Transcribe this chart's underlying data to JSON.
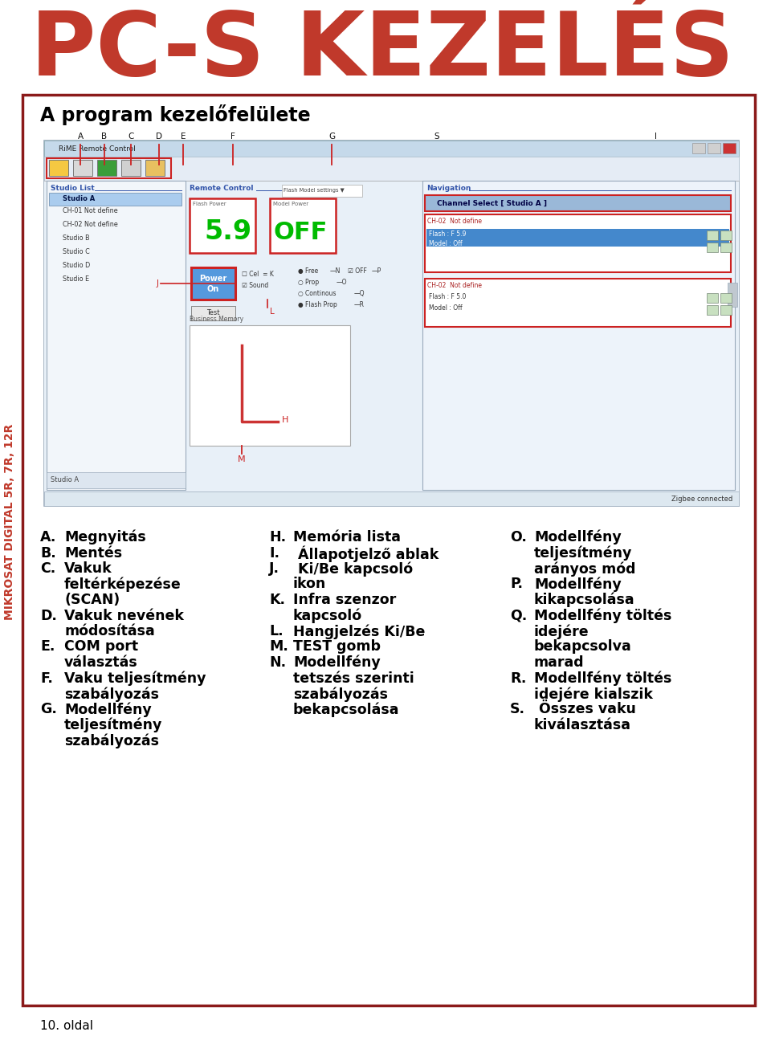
{
  "page_bg": "#ffffff",
  "border_color": "#8b1a1a",
  "title_text": "PC-S KEZELÉS",
  "title_color": "#c0392b",
  "side_text": "MIKROSAT DIGITAL 5R, 7R, 12R",
  "side_color": "#c0392b",
  "box_title": "A program kezelőfelülete",
  "box_title_color": "#000000",
  "footer_text": "10. oldal",
  "footer_color": "#000000",
  "col1_data": [
    [
      "A.",
      "Megnyitás",
      1
    ],
    [
      "B.",
      "Mentés",
      1
    ],
    [
      "C.",
      "Vakuk",
      3
    ],
    [
      "",
      "feltérképezése",
      0
    ],
    [
      "",
      "(SCAN)",
      0
    ],
    [
      "D.",
      "Vakuk nevének",
      2
    ],
    [
      "",
      "módosítása",
      0
    ],
    [
      "E.",
      "COM port",
      2
    ],
    [
      "",
      "választás",
      0
    ],
    [
      "F.",
      "Vaku teljesítmény",
      2
    ],
    [
      "",
      "szabályozás",
      0
    ],
    [
      "G.",
      "Modellfény",
      3
    ],
    [
      "",
      "teljesítmény",
      0
    ],
    [
      "",
      "szabályozás",
      0
    ]
  ],
  "col2_data": [
    [
      "H.",
      "Memória lista",
      1
    ],
    [
      "I.",
      " Állapotjelző ablak",
      1
    ],
    [
      "J.",
      " Ki/Be kapcsoló",
      2
    ],
    [
      "",
      "    ikon",
      0
    ],
    [
      "K.",
      "Infra szenzor",
      2
    ],
    [
      "",
      "    kapcsoló",
      0
    ],
    [
      "L.",
      "Hangjelzés Ki/Be",
      1
    ],
    [
      "M.",
      "TEST gomb",
      1
    ],
    [
      "N.",
      "Modellfény",
      4
    ],
    [
      "",
      "    tetszés szerinti",
      0
    ],
    [
      "",
      "    szabályozás",
      0
    ],
    [
      "",
      "    bekapcsolása",
      0
    ]
  ],
  "col3_data": [
    [
      "O.",
      "Modellfény",
      3
    ],
    [
      "",
      "    teljesítmény",
      0
    ],
    [
      "",
      "    arányos mód",
      0
    ],
    [
      "P.",
      "Modellfény",
      2
    ],
    [
      "",
      "    kikapcsolása",
      0
    ],
    [
      "Q.",
      "Modellfény töltés",
      4
    ],
    [
      "",
      "    idejére",
      0
    ],
    [
      "",
      "    bekapcsolva",
      0
    ],
    [
      "",
      "    marad",
      0
    ],
    [
      "R.",
      "Modellfény töltés",
      2
    ],
    [
      "",
      "    idejére kialszik",
      0
    ],
    [
      "S.",
      " Összes vaku",
      2
    ],
    [
      "",
      "    kiválasztása",
      0
    ]
  ]
}
